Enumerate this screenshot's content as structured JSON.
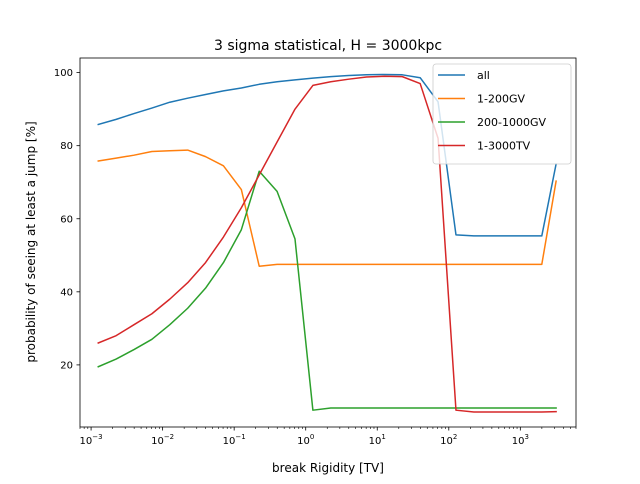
{
  "chart_data": {
    "type": "line",
    "title": "3 sigma statistical, H = 3000kpc",
    "xlabel": "break Rigidity [TV]",
    "ylabel": "probability of seeing at least a jump [%]",
    "x_scale": "log",
    "xlim": [
      0.0007,
      6000
    ],
    "ylim": [
      3,
      104
    ],
    "grid": false,
    "legend_position": "top-right",
    "x_ticks": [
      {
        "value": 0.001,
        "base": "10",
        "exp": "−3"
      },
      {
        "value": 0.01,
        "base": "10",
        "exp": "−2"
      },
      {
        "value": 0.1,
        "base": "10",
        "exp": "−1"
      },
      {
        "value": 1,
        "base": "10",
        "exp": "0"
      },
      {
        "value": 10,
        "base": "10",
        "exp": "1"
      },
      {
        "value": 100,
        "base": "10",
        "exp": "2"
      },
      {
        "value": 1000,
        "base": "10",
        "exp": "3"
      }
    ],
    "y_ticks": [
      20,
      40,
      60,
      80,
      100
    ],
    "x": [
      0.00126,
      0.00224,
      0.00398,
      0.00708,
      0.0126,
      0.0224,
      0.0398,
      0.0708,
      0.126,
      0.224,
      0.398,
      0.708,
      1.26,
      2.24,
      3.98,
      7.08,
      12.6,
      22.4,
      39.8,
      70.8,
      126,
      224,
      398,
      708,
      1260,
      1995,
      3162
    ],
    "series": [
      {
        "name": "all",
        "color": "#1f77b4",
        "values": [
          85.8,
          87.2,
          88.8,
          90.3,
          91.9,
          93.0,
          94.0,
          95.0,
          95.8,
          96.8,
          97.5,
          98.0,
          98.5,
          98.9,
          99.2,
          99.4,
          99.5,
          99.4,
          98.6,
          92.0,
          55.6,
          55.3,
          55.3,
          55.3,
          55.3,
          55.3,
          75.0
        ]
      },
      {
        "name": "1-200GV",
        "color": "#ff7f0e",
        "values": [
          75.8,
          76.6,
          77.4,
          78.4,
          78.6,
          78.8,
          77.0,
          74.5,
          68.0,
          47.0,
          47.5,
          47.5,
          47.5,
          47.5,
          47.5,
          47.5,
          47.5,
          47.5,
          47.5,
          47.5,
          47.5,
          47.5,
          47.5,
          47.5,
          47.5,
          47.5,
          70.3
        ]
      },
      {
        "name": "200-1000GV",
        "color": "#2ca02c",
        "values": [
          19.5,
          21.6,
          24.2,
          27.0,
          31.0,
          35.5,
          41.0,
          48.0,
          57.0,
          73.0,
          67.5,
          54.5,
          7.6,
          8.2,
          8.2,
          8.2,
          8.2,
          8.2,
          8.2,
          8.2,
          8.2,
          8.2,
          8.2,
          8.2,
          8.2,
          8.2,
          8.2
        ]
      },
      {
        "name": "1-3000TV",
        "color": "#d62728",
        "values": [
          26.0,
          28.0,
          31.0,
          34.0,
          38.0,
          42.5,
          48.0,
          55.0,
          63.0,
          72.0,
          81.0,
          90.0,
          96.5,
          97.5,
          98.2,
          98.8,
          99.0,
          98.9,
          97.0,
          82.0,
          7.6,
          7.1,
          7.1,
          7.1,
          7.1,
          7.1,
          7.2
        ]
      }
    ]
  }
}
